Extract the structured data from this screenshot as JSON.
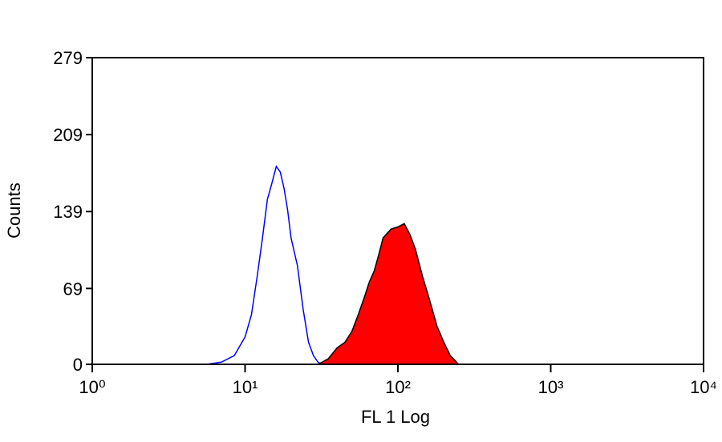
{
  "chart_data": {
    "type": "histogram-overlay",
    "xlabel": "FL 1 Log",
    "ylabel": "Counts",
    "xscale": "log",
    "xlim": [
      1,
      10000
    ],
    "xticks": [
      {
        "value": 1,
        "label": "10⁰"
      },
      {
        "value": 10,
        "label": "10¹"
      },
      {
        "value": 100,
        "label": "10²"
      },
      {
        "value": 1000,
        "label": "10³"
      },
      {
        "value": 10000,
        "label": "10⁴"
      }
    ],
    "ylim": [
      0,
      279
    ],
    "yticks": [
      0,
      69,
      139,
      209,
      279
    ],
    "series": [
      {
        "color": "#0000ff",
        "fill": "none",
        "x": [
          5.6,
          7,
          8.5,
          10,
          11,
          12,
          13,
          14,
          15,
          16,
          17,
          18,
          19,
          20,
          22,
          24,
          26,
          28,
          30,
          32
        ],
        "values": [
          0,
          2,
          8,
          25,
          45,
          80,
          115,
          150,
          165,
          180,
          175,
          160,
          140,
          115,
          90,
          50,
          20,
          8,
          2,
          0
        ]
      },
      {
        "color": "#000000",
        "fill": "#ff0000",
        "x": [
          30,
          35,
          40,
          45,
          50,
          55,
          60,
          65,
          70,
          75,
          80,
          90,
          100,
          110,
          120,
          130,
          145,
          160,
          180,
          200,
          220,
          250
        ],
        "values": [
          0,
          5,
          15,
          20,
          30,
          45,
          60,
          75,
          85,
          100,
          115,
          123,
          125,
          128,
          118,
          105,
          80,
          60,
          35,
          20,
          8,
          0
        ]
      }
    ]
  }
}
